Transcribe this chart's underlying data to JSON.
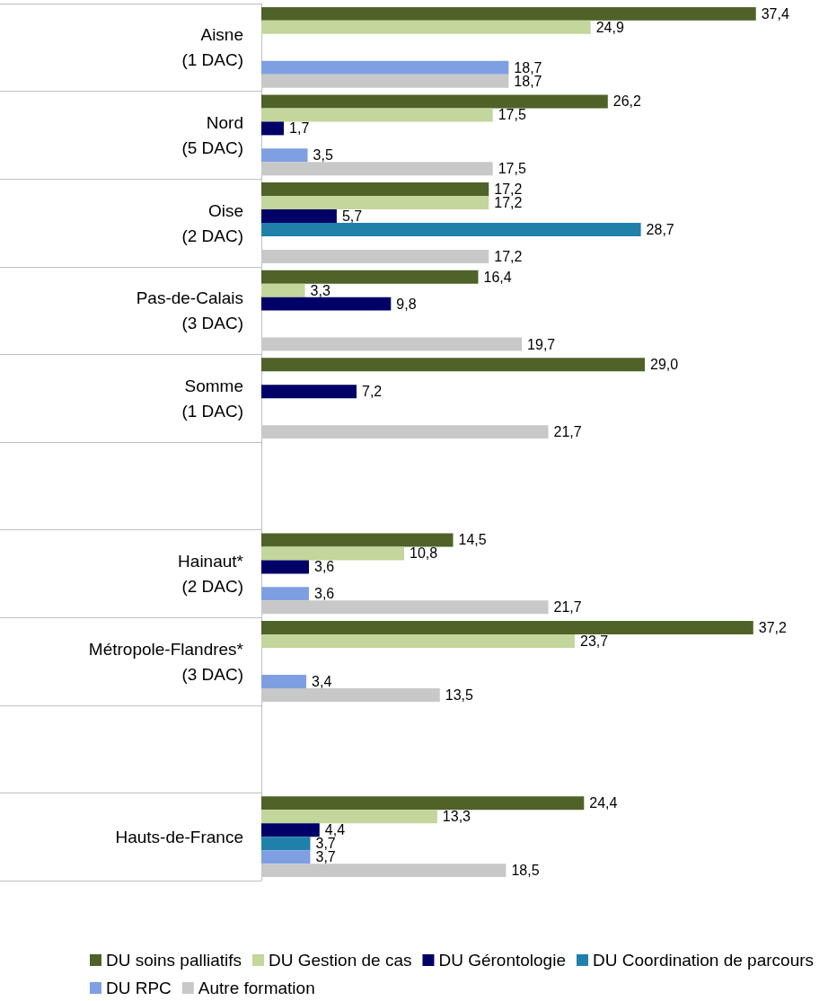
{
  "chart_data": {
    "type": "bar",
    "orientation": "horizontal",
    "categories": [
      "Aisne\n(1 DAC)",
      "Nord\n(5 DAC)",
      "Oise\n(2 DAC)",
      "Pas-de-Calais\n(3 DAC)",
      "Somme\n(1 DAC)",
      null,
      "Hainaut*\n(2 DAC)",
      "Métropole-Flandres*\n(3 DAC)",
      null,
      "Hauts-de-France"
    ],
    "series": [
      {
        "name": "DU soins palliatifs",
        "color": "#4f6228",
        "values": [
          37.4,
          26.2,
          17.2,
          16.4,
          29.0,
          null,
          14.5,
          37.2,
          null,
          24.4
        ],
        "value_labels": [
          "37,4",
          "26,2",
          "17,2",
          "16,4",
          "29,0",
          null,
          "14,5",
          "37,2",
          null,
          "24,4"
        ]
      },
      {
        "name": "DU Gestion de cas",
        "color": "#c3d69b",
        "values": [
          24.9,
          17.5,
          17.2,
          3.3,
          null,
          null,
          10.8,
          23.7,
          null,
          13.3
        ],
        "value_labels": [
          "24,9",
          "17,5",
          "17,2",
          "3,3",
          null,
          null,
          "10,8",
          "23,7",
          null,
          "13,3"
        ]
      },
      {
        "name": "DU Gérontologie",
        "color": "#000066",
        "values": [
          null,
          1.7,
          5.7,
          9.8,
          7.2,
          null,
          3.6,
          null,
          null,
          4.4
        ],
        "value_labels": [
          null,
          "1,7",
          "5,7",
          "9,8",
          "7,2",
          null,
          "3,6",
          null,
          null,
          "4,4"
        ]
      },
      {
        "name": "DU Coordination de parcours",
        "color": "#1f80aa",
        "values": [
          null,
          null,
          28.7,
          null,
          null,
          null,
          null,
          null,
          null,
          3.7
        ],
        "value_labels": [
          null,
          null,
          "28,7",
          null,
          null,
          null,
          null,
          null,
          null,
          "3,7"
        ]
      },
      {
        "name": "DU RPC",
        "color": "#7f9fe3",
        "values": [
          18.7,
          3.5,
          null,
          null,
          null,
          null,
          3.6,
          3.4,
          null,
          3.7
        ],
        "value_labels": [
          "18,7",
          "3,5",
          null,
          null,
          null,
          null,
          "3,6",
          "3,4",
          null,
          "3,7"
        ]
      },
      {
        "name": "Autre formation",
        "color": "#c8c8c8",
        "values": [
          18.7,
          17.5,
          17.2,
          19.7,
          21.7,
          null,
          21.7,
          13.5,
          null,
          18.5
        ],
        "value_labels": [
          "18,7",
          "17,5",
          "17,2",
          "19,7",
          "21,7",
          null,
          "21,7",
          "13,5",
          null,
          "18,5"
        ]
      }
    ],
    "tick_labels": "y",
    "legend": "bottom"
  }
}
